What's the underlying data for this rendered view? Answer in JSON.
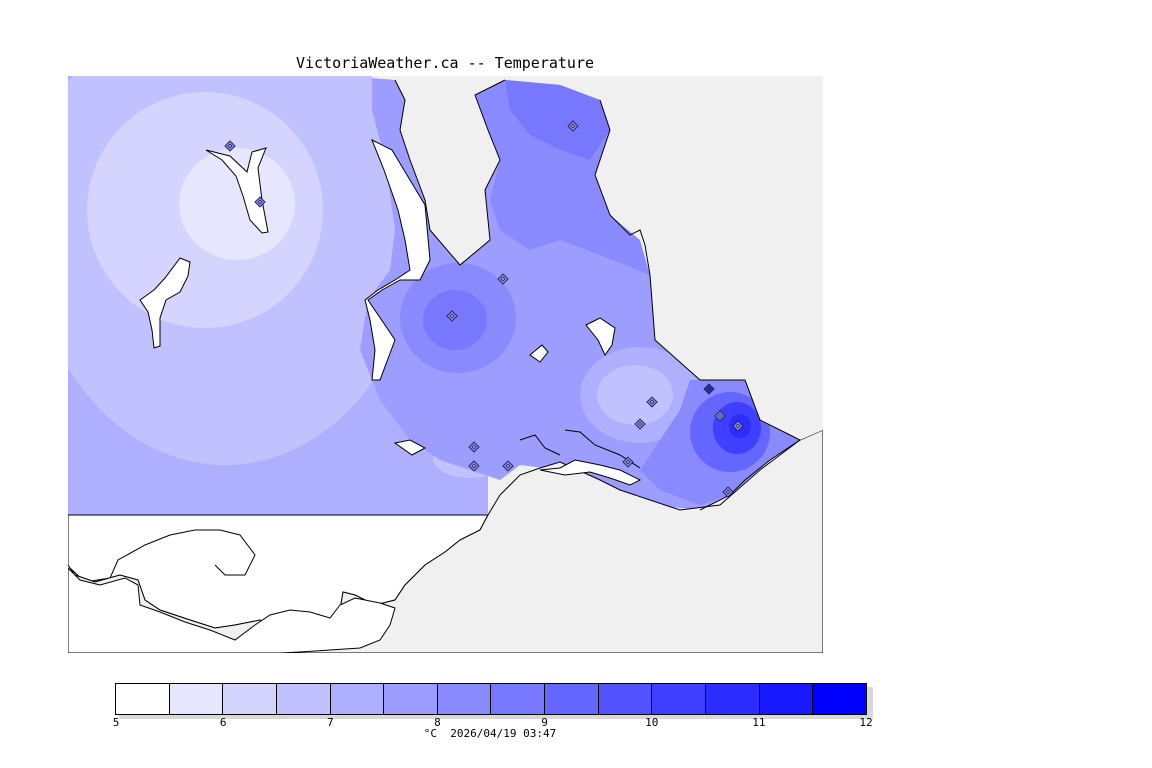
{
  "title": "VictoriaWeather.ca -- Temperature",
  "legend": {
    "caption": "°C  2026/04/19 03:47",
    "ticks": [
      "5",
      "6",
      "7",
      "8",
      "9",
      "10",
      "11",
      "12"
    ],
    "colors": [
      "#ffffff",
      "#e6e6ff",
      "#d4d4ff",
      "#c1c1ff",
      "#afafff",
      "#9d9dff",
      "#8a8aff",
      "#7878ff",
      "#6565ff",
      "#5252ff",
      "#3f3fff",
      "#2c2cff",
      "#1919ff",
      "#0000ff"
    ]
  },
  "map": {
    "background_color": "#f0f0f0",
    "land_color": "#ffffff",
    "station_markers": [
      {
        "name": "station",
        "value_hint": "6.3"
      },
      {
        "name": "station",
        "value_hint": "5.6"
      },
      {
        "name": "station",
        "value_hint": "9.0"
      },
      {
        "name": "station",
        "value_hint": "8.6"
      },
      {
        "name": "station",
        "value_hint": "9.4"
      },
      {
        "name": "station",
        "value_hint": "7.2"
      },
      {
        "name": "station",
        "value_hint": "7.4"
      },
      {
        "name": "station",
        "value_hint": "11.5"
      },
      {
        "name": "station",
        "value_hint": "10.0"
      },
      {
        "name": "station",
        "value_hint": "10.8"
      },
      {
        "name": "station",
        "value_hint": "6.4"
      },
      {
        "name": "station",
        "value_hint": "6.6"
      },
      {
        "name": "station",
        "value_hint": "8.2"
      },
      {
        "name": "station",
        "value_hint": "8.6"
      },
      {
        "name": "station",
        "value_hint": "9.2"
      }
    ]
  }
}
